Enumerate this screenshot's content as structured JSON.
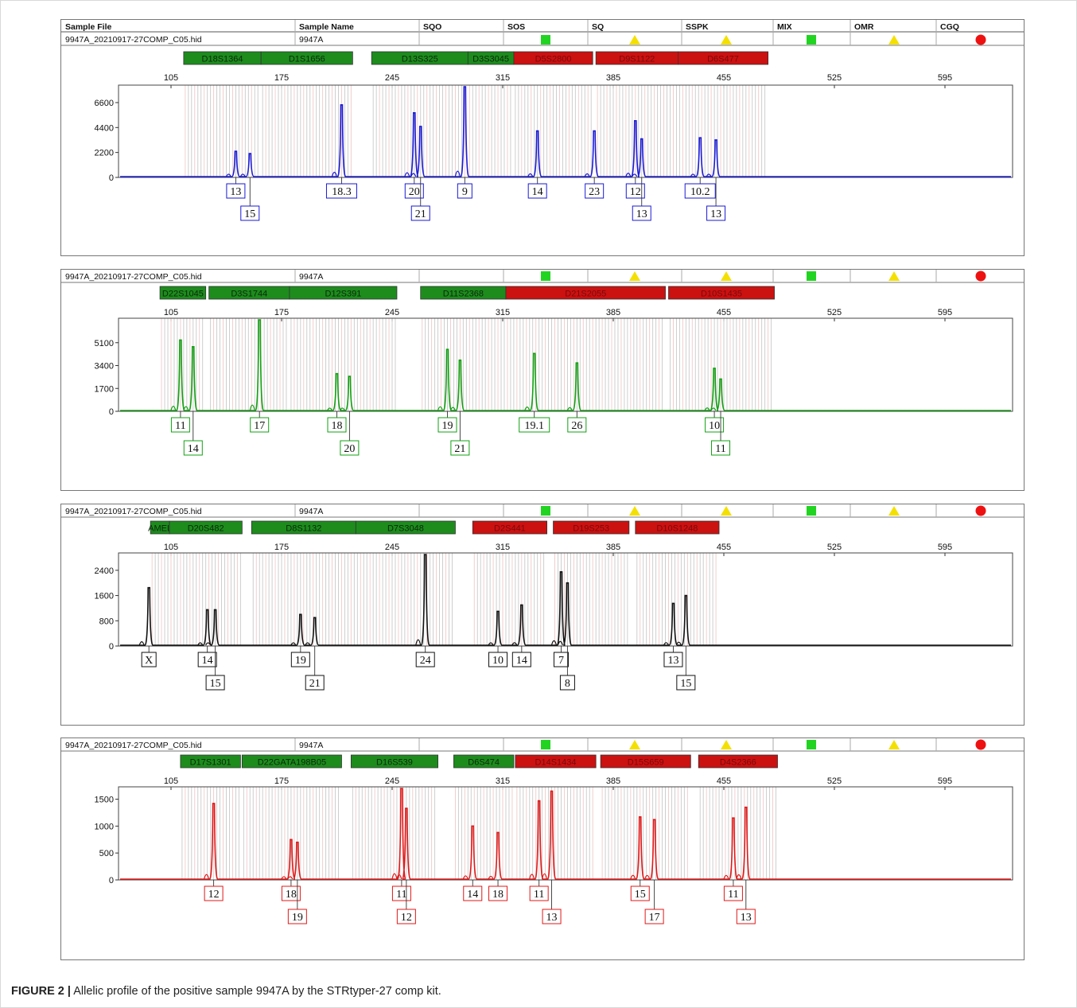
{
  "header": {
    "columns": [
      "Sample File",
      "Sample Name",
      "SQO",
      "SOS",
      "SQ",
      "SSPK",
      "MIX",
      "OMR",
      "CGQ"
    ],
    "sample_file": "9947A_20210917-27COMP_C05.hid",
    "sample_name": "9947A",
    "quality_flags": [
      "none",
      "green-square",
      "yellow-triangle",
      "yellow-triangle",
      "green-square",
      "yellow-triangle",
      "red-circle"
    ]
  },
  "colors": {
    "blue": "#1a1ad6",
    "green": "#12a012",
    "black": "#111111",
    "red": "#e01818",
    "marker_green": "#1d8c1d",
    "marker_red": "#cc1111"
  },
  "caption": {
    "label": "FIGURE 2 |",
    "text": "Allelic profile of the positive sample 9947A by the STRtyper-27 comp kit."
  },
  "chart_data": [
    {
      "type": "line",
      "dye": "blue",
      "x_ticks": [
        105,
        175,
        245,
        315,
        385,
        455,
        525,
        595
      ],
      "y_ticks": [
        0,
        2200,
        4400,
        6600
      ],
      "ylim": [
        0,
        8000
      ],
      "markers": [
        {
          "name": "D18S1364",
          "start": 113,
          "end": 162,
          "status": "green"
        },
        {
          "name": "D1S1656",
          "start": 162,
          "end": 220,
          "status": "green"
        },
        {
          "name": "D13S325",
          "start": 232,
          "end": 293,
          "status": "green"
        },
        {
          "name": "D3S3045",
          "start": 293,
          "end": 322,
          "status": "green"
        },
        {
          "name": "D5S2800",
          "start": 322,
          "end": 372,
          "status": "red"
        },
        {
          "name": "D9S1122",
          "start": 374,
          "end": 426,
          "status": "red"
        },
        {
          "name": "D6S477",
          "start": 426,
          "end": 483,
          "status": "red"
        }
      ],
      "peaks": [
        {
          "x": 146,
          "height": 2300,
          "allele": "13",
          "row": 1
        },
        {
          "x": 155,
          "height": 2100,
          "allele": "15",
          "row": 2
        },
        {
          "x": 213,
          "height": 6400,
          "allele": "18.3",
          "row": 1
        },
        {
          "x": 259,
          "height": 5700,
          "allele": "20",
          "row": 1
        },
        {
          "x": 263,
          "height": 4500,
          "allele": "21",
          "row": 2
        },
        {
          "x": 291,
          "height": 8000,
          "allele": "9",
          "row": 1
        },
        {
          "x": 337,
          "height": 4100,
          "allele": "14",
          "row": 1
        },
        {
          "x": 373,
          "height": 4100,
          "allele": "23",
          "row": 1
        },
        {
          "x": 399,
          "height": 5000,
          "allele": "12",
          "row": 1
        },
        {
          "x": 403,
          "height": 3400,
          "allele": "13",
          "row": 2
        },
        {
          "x": 440,
          "height": 3500,
          "allele": "10.2",
          "row": 1
        },
        {
          "x": 450,
          "height": 3300,
          "allele": "13",
          "row": 2
        }
      ]
    },
    {
      "type": "line",
      "dye": "green",
      "x_ticks": [
        105,
        175,
        245,
        315,
        385,
        455,
        525,
        595
      ],
      "y_ticks": [
        0,
        1700,
        3400,
        5100
      ],
      "ylim": [
        0,
        6800
      ],
      "markers": [
        {
          "name": "D22S1045",
          "start": 98,
          "end": 127,
          "status": "green"
        },
        {
          "name": "D3S1744",
          "start": 129,
          "end": 180,
          "status": "green"
        },
        {
          "name": "D12S391",
          "start": 180,
          "end": 248,
          "status": "green"
        },
        {
          "name": "D11S2368",
          "start": 263,
          "end": 317,
          "status": "green"
        },
        {
          "name": "D21S2055",
          "start": 317,
          "end": 418,
          "status": "red"
        },
        {
          "name": "D10S1435",
          "start": 420,
          "end": 487,
          "status": "red"
        }
      ],
      "peaks": [
        {
          "x": 111,
          "height": 5300,
          "allele": "11",
          "row": 1
        },
        {
          "x": 119,
          "height": 4800,
          "allele": "14",
          "row": 2
        },
        {
          "x": 161,
          "height": 6800,
          "allele": "17",
          "row": 1
        },
        {
          "x": 210,
          "height": 2800,
          "allele": "18",
          "row": 1
        },
        {
          "x": 218,
          "height": 2600,
          "allele": "20",
          "row": 2
        },
        {
          "x": 280,
          "height": 4600,
          "allele": "19",
          "row": 1
        },
        {
          "x": 288,
          "height": 3800,
          "allele": "21",
          "row": 2
        },
        {
          "x": 335,
          "height": 4300,
          "allele": "19.1",
          "row": 1
        },
        {
          "x": 362,
          "height": 3600,
          "allele": "26",
          "row": 1
        },
        {
          "x": 449,
          "height": 3200,
          "allele": "10",
          "row": 1
        },
        {
          "x": 453,
          "height": 2400,
          "allele": "11",
          "row": 2
        }
      ]
    },
    {
      "type": "line",
      "dye": "black",
      "x_ticks": [
        105,
        175,
        245,
        315,
        385,
        455,
        525,
        595
      ],
      "y_ticks": [
        0,
        800,
        1600,
        2400
      ],
      "ylim": [
        0,
        2900
      ],
      "markers": [
        {
          "name": "AMEL",
          "start": 92,
          "end": 104,
          "status": "green"
        },
        {
          "name": "D20S482",
          "start": 104,
          "end": 150,
          "status": "green"
        },
        {
          "name": "D8S1132",
          "start": 156,
          "end": 222,
          "status": "green"
        },
        {
          "name": "D7S3048",
          "start": 222,
          "end": 285,
          "status": "green"
        },
        {
          "name": "D2S441",
          "start": 296,
          "end": 343,
          "status": "red"
        },
        {
          "name": "D19S253",
          "start": 347,
          "end": 395,
          "status": "red"
        },
        {
          "name": "D10S1248",
          "start": 399,
          "end": 452,
          "status": "red"
        }
      ],
      "peaks": [
        {
          "x": 91,
          "height": 1850,
          "allele": "X",
          "row": 1
        },
        {
          "x": 128,
          "height": 1150,
          "allele": "14",
          "row": 1
        },
        {
          "x": 133,
          "height": 1150,
          "allele": "15",
          "row": 2
        },
        {
          "x": 187,
          "height": 1000,
          "allele": "19",
          "row": 1
        },
        {
          "x": 196,
          "height": 900,
          "allele": "21",
          "row": 2
        },
        {
          "x": 266,
          "height": 2900,
          "allele": "24",
          "row": 1
        },
        {
          "x": 312,
          "height": 1100,
          "allele": "10",
          "row": 1
        },
        {
          "x": 327,
          "height": 1300,
          "allele": "14",
          "row": 1
        },
        {
          "x": 352,
          "height": 2350,
          "allele": "7",
          "row": 1
        },
        {
          "x": 356,
          "height": 2000,
          "allele": "8",
          "row": 2
        },
        {
          "x": 423,
          "height": 1350,
          "allele": "13",
          "row": 1
        },
        {
          "x": 431,
          "height": 1600,
          "allele": "15",
          "row": 2
        }
      ]
    },
    {
      "type": "line",
      "dye": "red",
      "x_ticks": [
        105,
        175,
        245,
        315,
        385,
        455,
        525,
        595
      ],
      "y_ticks": [
        0,
        500,
        1000,
        1500
      ],
      "ylim": [
        0,
        1700
      ],
      "markers": [
        {
          "name": "D17S1301",
          "start": 111,
          "end": 149,
          "status": "green"
        },
        {
          "name": "D22GATA198B05",
          "start": 150,
          "end": 213,
          "status": "green"
        },
        {
          "name": "D16S539",
          "start": 219,
          "end": 274,
          "status": "green"
        },
        {
          "name": "D6S474",
          "start": 284,
          "end": 322,
          "status": "green"
        },
        {
          "name": "D14S1434",
          "start": 323,
          "end": 374,
          "status": "red"
        },
        {
          "name": "D15S659",
          "start": 377,
          "end": 434,
          "status": "red"
        },
        {
          "name": "D4S2366",
          "start": 439,
          "end": 489,
          "status": "red"
        }
      ],
      "peaks": [
        {
          "x": 132,
          "height": 1420,
          "allele": "12",
          "row": 1
        },
        {
          "x": 181,
          "height": 750,
          "allele": "18",
          "row": 1
        },
        {
          "x": 185,
          "height": 700,
          "allele": "19",
          "row": 2
        },
        {
          "x": 251,
          "height": 1700,
          "allele": "11",
          "row": 1
        },
        {
          "x": 254,
          "height": 1330,
          "allele": "12",
          "row": 2
        },
        {
          "x": 296,
          "height": 1000,
          "allele": "14",
          "row": 1
        },
        {
          "x": 312,
          "height": 880,
          "allele": "18",
          "row": 1
        },
        {
          "x": 338,
          "height": 1470,
          "allele": "11",
          "row": 1
        },
        {
          "x": 346,
          "height": 1650,
          "allele": "13",
          "row": 2
        },
        {
          "x": 402,
          "height": 1170,
          "allele": "15",
          "row": 1
        },
        {
          "x": 411,
          "height": 1120,
          "allele": "17",
          "row": 2
        },
        {
          "x": 461,
          "height": 1150,
          "allele": "11",
          "row": 1
        },
        {
          "x": 469,
          "height": 1350,
          "allele": "13",
          "row": 2
        }
      ]
    }
  ]
}
